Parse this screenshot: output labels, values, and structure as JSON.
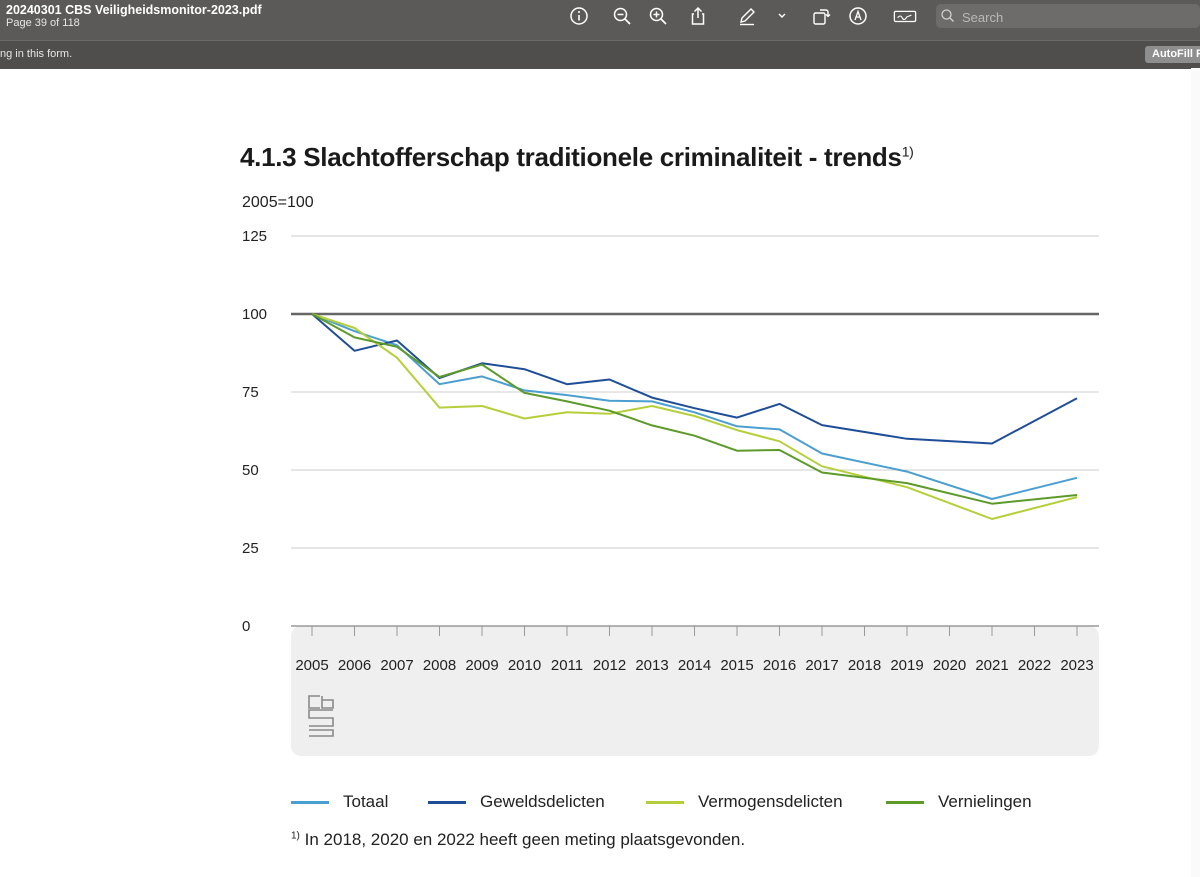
{
  "toolbar": {
    "document_title": "20240301 CBS Veiligheidsmonitor-2023.pdf",
    "page_info": "Page 39 of 118",
    "search_placeholder": "Search",
    "icons": [
      "info-icon",
      "zoom-out-icon",
      "zoom-in-icon",
      "share-icon",
      "markup-pen-icon",
      "chevron-down-icon",
      "rotate-icon",
      "markup-circle-icon",
      "signature-icon"
    ]
  },
  "form_bar": {
    "text": "ng in this form.",
    "autofill_label": "AutoFill F"
  },
  "page": {
    "title": "4.1.3 Slachtofferschap traditionele criminaliteit - trends",
    "title_sup": "1)",
    "y_unit": "2005=100",
    "footnote_marker": "1)",
    "footnote_text": "In 2018, 2020 en 2022 heeft geen meting plaatsgevonden."
  },
  "chart_data": {
    "type": "line",
    "title": "4.1.3 Slachtofferschap traditionele criminaliteit - trends",
    "ylabel": "2005=100",
    "xlabel": "",
    "ylim": [
      0,
      125
    ],
    "yticks": [
      0,
      25,
      50,
      75,
      100,
      125
    ],
    "reference_line": 100,
    "x": [
      2005,
      2006,
      2007,
      2008,
      2009,
      2010,
      2011,
      2012,
      2013,
      2014,
      2015,
      2016,
      2017,
      2018,
      2019,
      2020,
      2021,
      2022,
      2023
    ],
    "series": [
      {
        "name": "Totaal",
        "color": "#4a9fd0",
        "points": [
          [
            2005,
            100
          ],
          [
            2006,
            94.5
          ],
          [
            2007,
            90
          ],
          [
            2008,
            77.5
          ],
          [
            2009,
            80
          ],
          [
            2010,
            75.5
          ],
          [
            2011,
            74
          ],
          [
            2012,
            72.2
          ],
          [
            2013,
            72
          ],
          [
            2014,
            68.5
          ],
          [
            2015,
            64
          ],
          [
            2016,
            63
          ],
          [
            2017,
            55.3
          ],
          [
            2019,
            49.5
          ],
          [
            2021,
            40.7
          ],
          [
            2023,
            47.5
          ]
        ]
      },
      {
        "name": "Geweldsdelicten",
        "color": "#1f4e99",
        "points": [
          [
            2005,
            100
          ],
          [
            2006,
            88.2
          ],
          [
            2007,
            91.5
          ],
          [
            2008,
            79.5
          ],
          [
            2009,
            84.2
          ],
          [
            2010,
            82.3
          ],
          [
            2011,
            77.5
          ],
          [
            2012,
            79
          ],
          [
            2013,
            73.2
          ],
          [
            2014,
            69.8
          ],
          [
            2015,
            66.8
          ],
          [
            2016,
            71.2
          ],
          [
            2017,
            64.4
          ],
          [
            2019,
            60
          ],
          [
            2021,
            58.5
          ],
          [
            2023,
            73
          ]
        ]
      },
      {
        "name": "Vermogensdelicten",
        "color": "#b5cf3a",
        "points": [
          [
            2005,
            100
          ],
          [
            2006,
            95.5
          ],
          [
            2007,
            86
          ],
          [
            2008,
            70
          ],
          [
            2009,
            70.5
          ],
          [
            2010,
            66.5
          ],
          [
            2011,
            68.5
          ],
          [
            2012,
            68
          ],
          [
            2013,
            70.5
          ],
          [
            2014,
            67.3
          ],
          [
            2015,
            62.8
          ],
          [
            2016,
            59.2
          ],
          [
            2017,
            51.2
          ],
          [
            2019,
            44.5
          ],
          [
            2021,
            34.3
          ],
          [
            2023,
            41.3
          ]
        ]
      },
      {
        "name": "Vernielingen",
        "color": "#5c9a2a",
        "points": [
          [
            2005,
            100
          ],
          [
            2006,
            92.5
          ],
          [
            2007,
            89.5
          ],
          [
            2008,
            79.8
          ],
          [
            2009,
            83.8
          ],
          [
            2010,
            74.7
          ],
          [
            2011,
            72
          ],
          [
            2012,
            69
          ],
          [
            2013,
            64.3
          ],
          [
            2014,
            61
          ],
          [
            2015,
            56.2
          ],
          [
            2016,
            56.4
          ],
          [
            2017,
            49.2
          ],
          [
            2019,
            45.8
          ],
          [
            2021,
            39.2
          ],
          [
            2023,
            42
          ]
        ]
      }
    ]
  },
  "legend": [
    {
      "label": "Totaal",
      "color": "#4a9fd0"
    },
    {
      "label": "Geweldsdelicten",
      "color": "#1f4e99"
    },
    {
      "label": "Vermogensdelicten",
      "color": "#b5cf3a"
    },
    {
      "label": "Vernielingen",
      "color": "#5c9a2a"
    }
  ]
}
